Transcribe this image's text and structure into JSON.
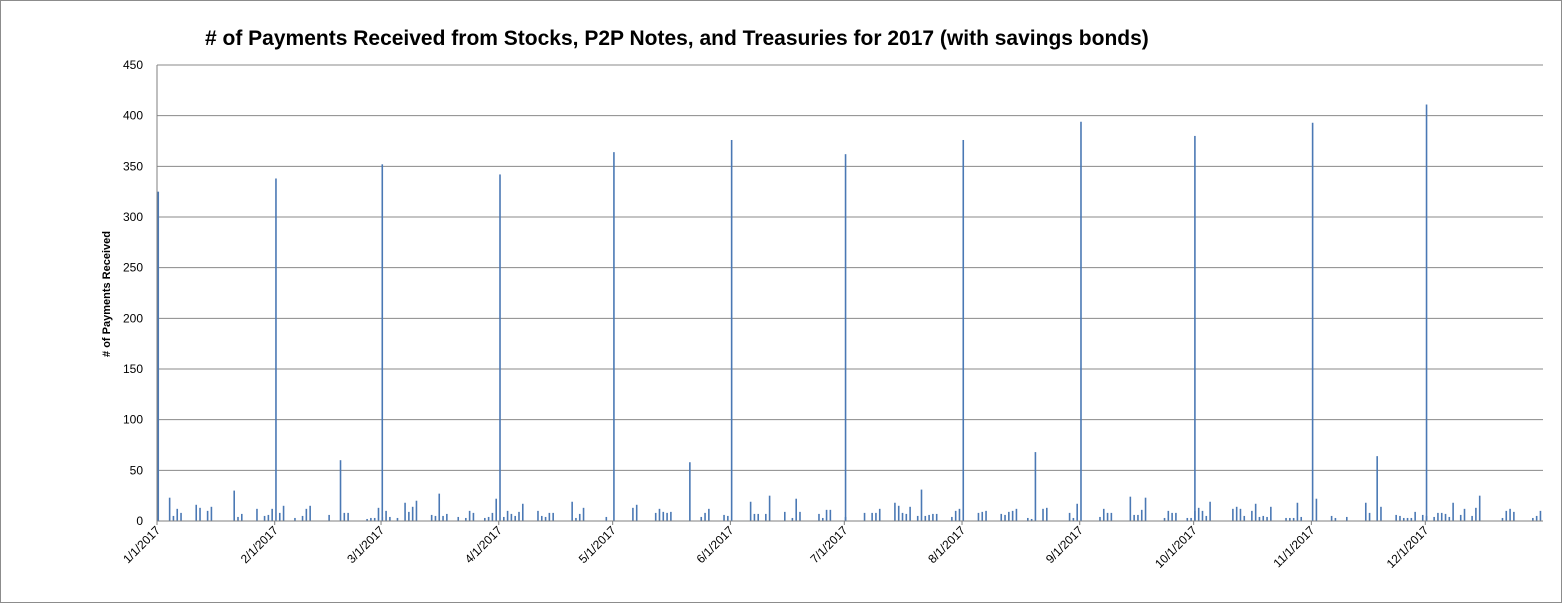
{
  "chart_data": {
    "type": "bar",
    "title": "# of Payments Received from Stocks, P2P Notes, and Treasuries for 2017 (with savings bonds)",
    "ylabel": "# of Payments Received",
    "xlabel": "",
    "ylim": [
      0,
      450
    ],
    "y_ticks": [
      "0",
      "50",
      "100",
      "150",
      "200",
      "250",
      "300",
      "350",
      "400",
      "450"
    ],
    "x_tick_labels": [
      "1/1/2017",
      "2/1/2017",
      "3/1/2017",
      "4/1/2017",
      "5/1/2017",
      "6/1/2017",
      "7/1/2017",
      "8/1/2017",
      "9/1/2017",
      "10/1/2017",
      "11/1/2017",
      "12/1/2017"
    ],
    "grid": true,
    "legend": "none",
    "bar_color": "#4a78b4",
    "day_ranges": [
      [
        "2017-01-01",
        "2017-01-31"
      ],
      [
        "2017-02-01",
        "2017-02-28"
      ],
      [
        "2017-03-01",
        "2017-03-31"
      ],
      [
        "2017-04-01",
        "2017-04-30"
      ],
      [
        "2017-05-01",
        "2017-05-31"
      ],
      [
        "2017-06-01",
        "2017-06-30"
      ],
      [
        "2017-07-01",
        "2017-07-31"
      ],
      [
        "2017-08-01",
        "2017-08-31"
      ],
      [
        "2017-09-01",
        "2017-09-30"
      ],
      [
        "2017-10-01",
        "2017-10-31"
      ],
      [
        "2017-11-01",
        "2017-11-30"
      ],
      [
        "2017-12-01",
        "2017-12-31"
      ]
    ],
    "values_by_month": [
      [
        325,
        0,
        0,
        23,
        5,
        12,
        8,
        0,
        0,
        0,
        16,
        13,
        0,
        10,
        14,
        0,
        0,
        0,
        0,
        0,
        30,
        4,
        7,
        0,
        0,
        0,
        12,
        0,
        5,
        6,
        12
      ],
      [
        338,
        8,
        15,
        0,
        0,
        3,
        0,
        5,
        12,
        15,
        0,
        0,
        0,
        0,
        6,
        0,
        0,
        60,
        8,
        8,
        0,
        0,
        0,
        0,
        2,
        3,
        3,
        13,
        4,
        0,
        0
      ],
      [
        352,
        10,
        4,
        0,
        3,
        0,
        18,
        9,
        14,
        20,
        0,
        0,
        0,
        6,
        5,
        27,
        5,
        7,
        0,
        0,
        4,
        0,
        3,
        10,
        8,
        0,
        0,
        3,
        4,
        8,
        22
      ],
      [
        342,
        4,
        10,
        7,
        5,
        9,
        17,
        0,
        0,
        0,
        10,
        5,
        4,
        8,
        8,
        0,
        0,
        0,
        0,
        19,
        3,
        7,
        13,
        0,
        0,
        0,
        0,
        0,
        4,
        0
      ],
      [
        364,
        0,
        0,
        0,
        0,
        13,
        16,
        0,
        0,
        0,
        0,
        8,
        12,
        9,
        8,
        9,
        0,
        0,
        0,
        0,
        58,
        0,
        0,
        4,
        8,
        12,
        0,
        0,
        0,
        6,
        5
      ],
      [
        376,
        0,
        0,
        0,
        0,
        19,
        7,
        7,
        0,
        7,
        25,
        0,
        0,
        0,
        9,
        0,
        3,
        22,
        9,
        0,
        0,
        0,
        0,
        7,
        3,
        11,
        11,
        0,
        0,
        0,
        4
      ],
      [
        362,
        0,
        0,
        0,
        0,
        8,
        0,
        8,
        8,
        12,
        0,
        0,
        0,
        18,
        15,
        8,
        7,
        14,
        0,
        5,
        31,
        5,
        6,
        7,
        7,
        0,
        0,
        0,
        4,
        10,
        12
      ],
      [
        376,
        0,
        0,
        0,
        8,
        9,
        10,
        0,
        0,
        0,
        7,
        6,
        9,
        10,
        12,
        0,
        0,
        3,
        2,
        68,
        0,
        12,
        13,
        0,
        0,
        0,
        0,
        0,
        8,
        3,
        17
      ],
      [
        394,
        0,
        0,
        0,
        0,
        4,
        12,
        8,
        8,
        0,
        0,
        0,
        0,
        24,
        6,
        6,
        11,
        23,
        0,
        0,
        0,
        0,
        3,
        10,
        8,
        8,
        0,
        0,
        3,
        3,
        10
      ],
      [
        380,
        13,
        10,
        5,
        19,
        0,
        0,
        0,
        0,
        0,
        12,
        14,
        12,
        5,
        0,
        10,
        17,
        4,
        5,
        4,
        14,
        0,
        0,
        0,
        3,
        3,
        3,
        18,
        4,
        0,
        0
      ],
      [
        393,
        22,
        0,
        0,
        0,
        5,
        3,
        0,
        0,
        4,
        0,
        0,
        0,
        0,
        18,
        8,
        0,
        64,
        14,
        0,
        0,
        0,
        6,
        5,
        3,
        3,
        3,
        9,
        0,
        6,
        5
      ],
      [
        411,
        0,
        4,
        8,
        8,
        7,
        4,
        18,
        0,
        6,
        12,
        0,
        5,
        13,
        25,
        0,
        0,
        0,
        0,
        0,
        3,
        10,
        12,
        9,
        0,
        0,
        0,
        0,
        3,
        5,
        10
      ]
    ]
  }
}
